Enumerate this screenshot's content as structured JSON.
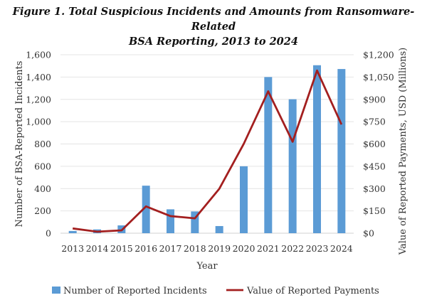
{
  "chart_data": {
    "type": "bar+line",
    "title_line1": "Figure 1. Total Suspicious Incidents and Amounts from Ransomware-Related",
    "title_line2": "BSA Reporting,  2013 to 2024",
    "xlabel": "Year",
    "ylabel": "Number of BSA-Reported Incidents",
    "y2label": "Value of Reported Payments, USD (Millions)",
    "categories": [
      "2013",
      "2014",
      "2015",
      "2016",
      "2017",
      "2018",
      "2019",
      "2020",
      "2021",
      "2022",
      "2023",
      "2024"
    ],
    "ylim": [
      0,
      1600
    ],
    "y2lim": [
      0,
      1200
    ],
    "yticks": [
      "0",
      "200",
      "400",
      "600",
      "800",
      "1,000",
      "1,200",
      "1,400",
      "1,600"
    ],
    "y2ticks": [
      "$0",
      "$150",
      "$300",
      "$450",
      "$600",
      "$750",
      "$900",
      "$1,050",
      "$1,200"
    ],
    "grid": true,
    "legend_position": "bottom",
    "series": [
      {
        "name": "Number of Reported Incidents",
        "type": "bar",
        "axis": "left",
        "color": "#5B9BD5",
        "values": [
          20,
          34,
          70,
          426,
          214,
          195,
          64,
          600,
          1400,
          1201,
          1506,
          1472
        ]
      },
      {
        "name": "Value of Reported Payments",
        "type": "line",
        "axis": "right",
        "color": "#A31F1F",
        "values": [
          32,
          10,
          19,
          180,
          115,
          100,
          299,
          601,
          954,
          615,
          1094,
          731
        ]
      }
    ]
  }
}
